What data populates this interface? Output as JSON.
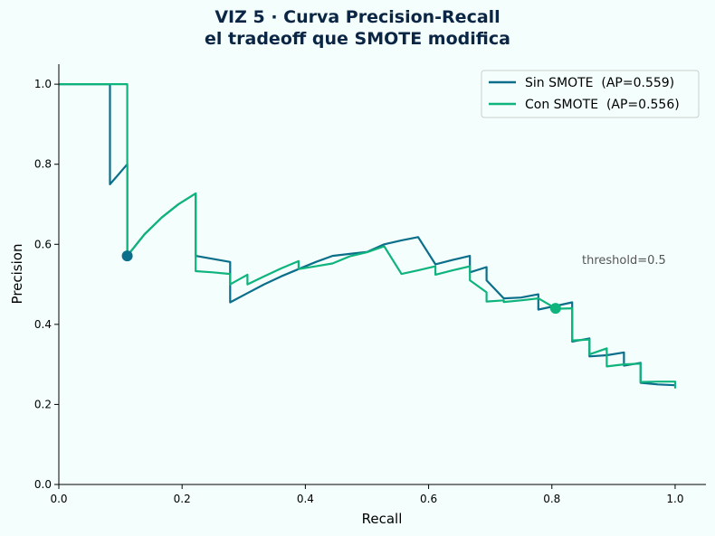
{
  "chart_data": {
    "type": "line",
    "title": "VIZ 5 · Curva Precision-Recall",
    "subtitle": "el tradeoff que SMOTE modifica",
    "xlabel": "Recall",
    "ylabel": "Precision",
    "xlim": [
      0.0,
      1.05
    ],
    "ylim": [
      0.0,
      1.05
    ],
    "xticks": [
      "0.0",
      "0.2",
      "0.4",
      "0.6",
      "0.8",
      "1.0"
    ],
    "yticks": [
      "0.0",
      "0.2",
      "0.4",
      "0.6",
      "0.8",
      "1.0"
    ],
    "grid": false,
    "legend_position": "top-right",
    "annotation": "threshold=0.5",
    "series": [
      {
        "name": "Sin SMOTE  (AP=0.559)",
        "color": "#0b6e8a",
        "x": [
          0.0,
          0.083,
          0.083,
          0.111,
          0.111,
          0.139,
          0.167,
          0.194,
          0.222,
          0.222,
          0.278,
          0.278,
          0.306,
          0.333,
          0.361,
          0.389,
          0.417,
          0.444,
          0.472,
          0.5,
          0.528,
          0.556,
          0.583,
          0.611,
          0.639,
          0.667,
          0.667,
          0.694,
          0.694,
          0.722,
          0.75,
          0.778,
          0.778,
          0.806,
          0.833,
          0.833,
          0.861,
          0.861,
          0.889,
          0.917,
          0.917,
          0.944,
          0.944,
          0.972,
          1.0
        ],
        "y": [
          1.0,
          1.0,
          0.75,
          0.8,
          0.571,
          0.625,
          0.667,
          0.7,
          0.727,
          0.571,
          0.556,
          0.455,
          0.478,
          0.5,
          0.52,
          0.538,
          0.556,
          0.571,
          0.576,
          0.581,
          0.6,
          0.61,
          0.618,
          0.55,
          0.561,
          0.571,
          0.53,
          0.543,
          0.51,
          0.465,
          0.467,
          0.475,
          0.437,
          0.446,
          0.455,
          0.357,
          0.365,
          0.32,
          0.323,
          0.33,
          0.297,
          0.304,
          0.254,
          0.25,
          0.248
        ],
        "threshold_point": [
          0.111,
          0.571
        ]
      },
      {
        "name": "Con SMOTE  (AP=0.556)",
        "color": "#0fb47c",
        "x": [
          0.0,
          0.111,
          0.111,
          0.139,
          0.167,
          0.194,
          0.222,
          0.222,
          0.25,
          0.278,
          0.278,
          0.306,
          0.306,
          0.333,
          0.361,
          0.389,
          0.389,
          0.417,
          0.444,
          0.472,
          0.5,
          0.528,
          0.556,
          0.583,
          0.611,
          0.611,
          0.639,
          0.667,
          0.667,
          0.694,
          0.694,
          0.722,
          0.722,
          0.75,
          0.778,
          0.806,
          0.806,
          0.833,
          0.833,
          0.861,
          0.861,
          0.889,
          0.889,
          0.917,
          0.944,
          0.944,
          0.972,
          1.0,
          1.0
        ],
        "y": [
          1.0,
          1.0,
          0.571,
          0.625,
          0.667,
          0.7,
          0.727,
          0.533,
          0.53,
          0.526,
          0.5,
          0.524,
          0.5,
          0.52,
          0.54,
          0.558,
          0.538,
          0.545,
          0.552,
          0.57,
          0.58,
          0.595,
          0.526,
          0.535,
          0.545,
          0.524,
          0.535,
          0.545,
          0.51,
          0.48,
          0.457,
          0.46,
          0.456,
          0.46,
          0.465,
          0.44,
          0.439,
          0.44,
          0.36,
          0.362,
          0.325,
          0.34,
          0.295,
          0.3,
          0.302,
          0.256,
          0.257,
          0.257,
          0.24
        ],
        "threshold_point": [
          0.806,
          0.44
        ]
      }
    ]
  }
}
